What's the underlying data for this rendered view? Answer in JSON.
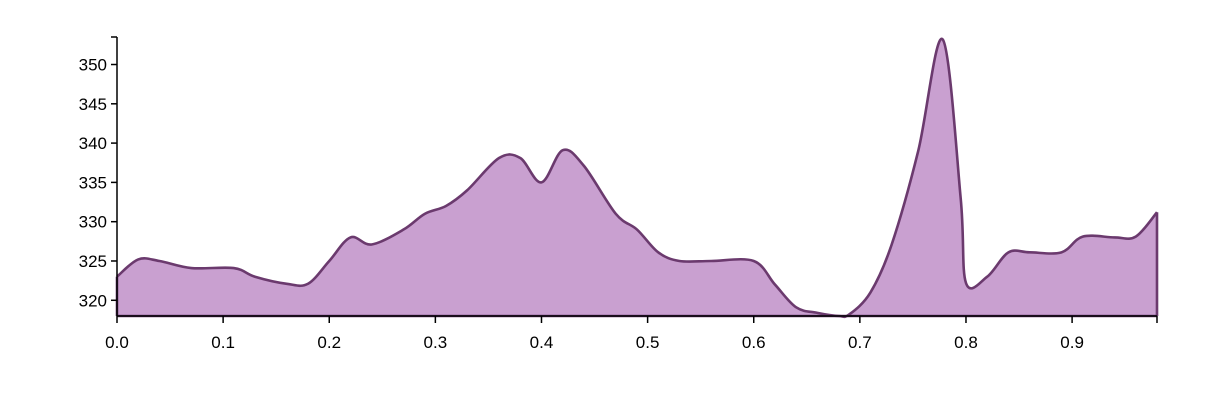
{
  "chart_data": {
    "type": "area",
    "title": "",
    "xlabel": "",
    "ylabel": "",
    "xlim": [
      0,
      0.98
    ],
    "ylim": [
      318,
      353.5
    ],
    "x_ticks": [
      0.0,
      0.1,
      0.2,
      0.3,
      0.4,
      0.5,
      0.6,
      0.7,
      0.8,
      0.9
    ],
    "x_tick_labels": [
      "0.0",
      "0.1",
      "0.2",
      "0.3",
      "0.4",
      "0.5",
      "0.6",
      "0.7",
      "0.8",
      "0.9"
    ],
    "y_ticks": [
      320,
      325,
      330,
      335,
      340,
      345,
      350
    ],
    "y_tick_labels": [
      "320",
      "325",
      "330",
      "335",
      "340",
      "345",
      "350"
    ],
    "grid": false,
    "colors": {
      "fill": "#c9a0d0",
      "stroke": "#6b3a6e",
      "axis": "#000000"
    },
    "series": [
      {
        "x": [
          0.0,
          0.02,
          0.04,
          0.07,
          0.11,
          0.13,
          0.16,
          0.18,
          0.2,
          0.22,
          0.24,
          0.27,
          0.29,
          0.31,
          0.33,
          0.36,
          0.38,
          0.4,
          0.42,
          0.44,
          0.47,
          0.49,
          0.51,
          0.53,
          0.56,
          0.6,
          0.62,
          0.64,
          0.66,
          0.68,
          0.69,
          0.71,
          0.73,
          0.755,
          0.778,
          0.795,
          0.8,
          0.82,
          0.84,
          0.86,
          0.89,
          0.91,
          0.94,
          0.96,
          0.98
        ],
        "y": [
          323,
          325.2,
          325,
          324.1,
          324.1,
          323,
          322.1,
          322.1,
          325,
          328,
          327.1,
          329,
          331,
          332,
          334,
          338.1,
          338.1,
          335,
          339.1,
          337.1,
          331,
          329,
          326.1,
          325,
          325,
          325,
          322,
          319.1,
          318.4,
          318,
          318.2,
          321,
          327.1,
          339,
          353.2,
          333,
          322.2,
          323,
          326.1,
          326.1,
          326.1,
          328.1,
          328,
          328.1,
          331.2
        ]
      }
    ]
  }
}
